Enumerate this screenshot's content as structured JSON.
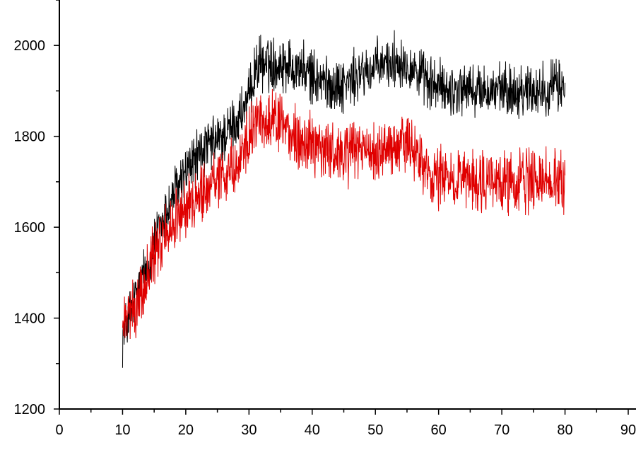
{
  "chart_data": {
    "type": "line",
    "title": "",
    "xlabel": "",
    "ylabel": "",
    "xlim": [
      0,
      90
    ],
    "ylim": [
      1200,
      2100
    ],
    "x_ticks": [
      0,
      10,
      20,
      30,
      40,
      50,
      60,
      70,
      80,
      90
    ],
    "y_ticks": [
      1200,
      1400,
      1600,
      1800,
      2000
    ],
    "x_tick_labels": [
      "0",
      "10",
      "20",
      "30",
      "40",
      "50",
      "60",
      "70",
      "80",
      "90"
    ],
    "y_tick_labels": [
      "1200",
      "1400",
      "1600",
      "1800",
      "2000"
    ],
    "grid": false,
    "legend": "none",
    "series": [
      {
        "color": "#000000",
        "x": [
          10,
          12,
          14,
          16,
          18,
          20,
          22,
          24,
          26,
          28,
          30,
          31,
          32,
          34,
          36,
          38,
          40,
          42,
          44,
          46,
          48,
          50,
          52,
          54,
          56,
          58,
          60,
          62,
          64,
          66,
          68,
          70,
          72,
          74,
          76,
          78,
          80
        ],
        "y": [
          1360,
          1440,
          1520,
          1600,
          1670,
          1720,
          1760,
          1780,
          1800,
          1830,
          1880,
          1950,
          1960,
          1960,
          1960,
          1950,
          1930,
          1920,
          1910,
          1920,
          1940,
          1950,
          1960,
          1970,
          1950,
          1920,
          1910,
          1900,
          1905,
          1900,
          1900,
          1900,
          1900,
          1905,
          1900,
          1910,
          1910
        ],
        "noise": 45
      },
      {
        "color": "#e00000",
        "x": [
          10,
          12,
          14,
          16,
          18,
          20,
          22,
          24,
          26,
          28,
          30,
          32,
          34,
          36,
          38,
          40,
          42,
          44,
          46,
          48,
          50,
          52,
          54,
          56,
          58,
          60,
          62,
          64,
          66,
          68,
          70,
          72,
          74,
          76,
          78,
          80
        ],
        "y": [
          1380,
          1420,
          1500,
          1570,
          1610,
          1640,
          1670,
          1700,
          1720,
          1740,
          1790,
          1840,
          1830,
          1810,
          1790,
          1780,
          1770,
          1760,
          1760,
          1770,
          1760,
          1770,
          1780,
          1770,
          1730,
          1710,
          1710,
          1700,
          1700,
          1700,
          1700,
          1700,
          1700,
          1700,
          1700,
          1700
        ],
        "noise": 50
      }
    ]
  }
}
